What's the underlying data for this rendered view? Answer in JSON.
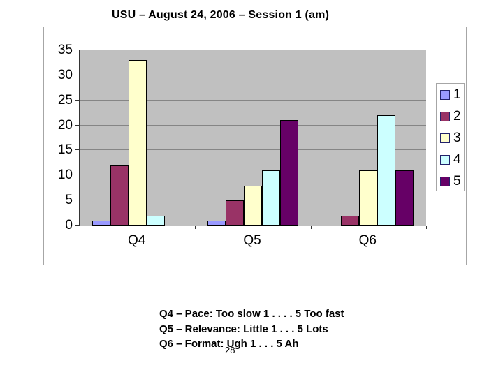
{
  "slide": {
    "title": "USU – August 24, 2006 – Session 1 (am)",
    "page_number": "28",
    "notes": [
      "Q4 – Pace: Too slow 1 . . . . 5 Too fast",
      "Q5 – Relevance: Little 1 . . . 5 Lots",
      "Q6 – Format: Ugh 1 . . . 5 Ah"
    ]
  },
  "chart_data": {
    "type": "bar",
    "title": "",
    "categories": [
      "Q4",
      "Q5",
      "Q6"
    ],
    "series": [
      {
        "name": "1",
        "color": "#9999FF",
        "values": [
          1,
          1,
          0
        ]
      },
      {
        "name": "2",
        "color": "#993366",
        "values": [
          12,
          5,
          2
        ]
      },
      {
        "name": "3",
        "color": "#FFFFCC",
        "values": [
          33,
          8,
          11
        ]
      },
      {
        "name": "4",
        "color": "#CCFFFF",
        "values": [
          2,
          11,
          22
        ]
      },
      {
        "name": "5",
        "color": "#660066",
        "values": [
          0,
          21,
          11
        ]
      }
    ],
    "xlabel": "",
    "ylabel": "",
    "ylim": [
      0,
      35
    ],
    "ytick_step": 5,
    "grid": true,
    "legend_position": "right",
    "plot_background": "#C0C0C0",
    "gridline_color": "#858585"
  }
}
